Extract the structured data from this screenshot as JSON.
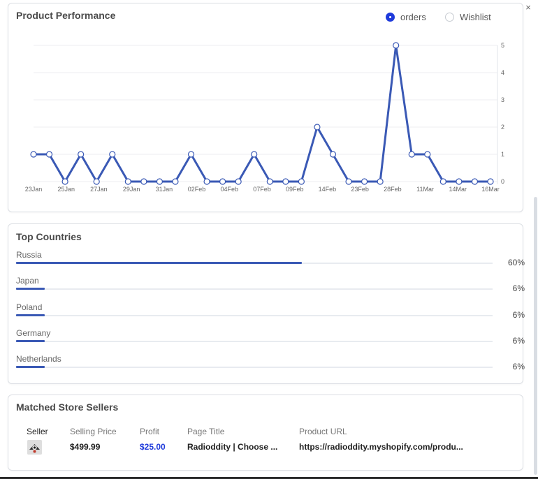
{
  "close_glyph": "×",
  "performance": {
    "title": "Product Performance",
    "legend": [
      {
        "label": "orders",
        "selected": true
      },
      {
        "label": "Wishlist",
        "selected": false
      }
    ]
  },
  "chart_data": {
    "type": "line",
    "title": "Product Performance",
    "xlabel": "",
    "ylabel": "",
    "ylim": [
      0,
      5
    ],
    "y_ticks": [
      0,
      1,
      2,
      3,
      4,
      5
    ],
    "y_axis_side": "right",
    "grid": true,
    "color": "#3a59b5",
    "x_tick_labels": [
      "23Jan",
      "25Jan",
      "27Jan",
      "29Jan",
      "31Jan",
      "02Feb",
      "04Feb",
      "07Feb",
      "09Feb",
      "14Feb",
      "23Feb",
      "28Feb",
      "11Mar",
      "14Mar",
      "16Mar"
    ],
    "series": [
      {
        "name": "orders",
        "values": [
          1,
          1,
          0,
          1,
          0,
          1,
          0,
          0,
          0,
          0,
          1,
          0,
          0,
          0,
          1,
          0,
          0,
          0,
          2,
          1,
          0,
          0,
          0,
          5,
          1,
          1,
          0,
          0,
          0,
          0
        ]
      }
    ]
  },
  "countries": {
    "title": "Top Countries",
    "items": [
      {
        "name": "Russia",
        "percent_label": "60%",
        "value": 0.6
      },
      {
        "name": "Japan",
        "percent_label": "6%",
        "value": 0.06
      },
      {
        "name": "Poland",
        "percent_label": "6%",
        "value": 0.06
      },
      {
        "name": "Germany",
        "percent_label": "6%",
        "value": 0.06
      },
      {
        "name": "Netherlands",
        "percent_label": "6%",
        "value": 0.06
      }
    ]
  },
  "sellers": {
    "title": "Matched Store Sellers",
    "headers": {
      "seller": "Seller",
      "price": "Selling Price",
      "profit": "Profit",
      "page_title": "Page Title",
      "url": "Product URL"
    },
    "rows": [
      {
        "price": "$499.99",
        "profit": "$25.00",
        "page_title": "Radioddity | Choose ...",
        "url": "https://radioddity.myshopify.com/produ..."
      }
    ],
    "profit_color": "#1f3bdb"
  }
}
